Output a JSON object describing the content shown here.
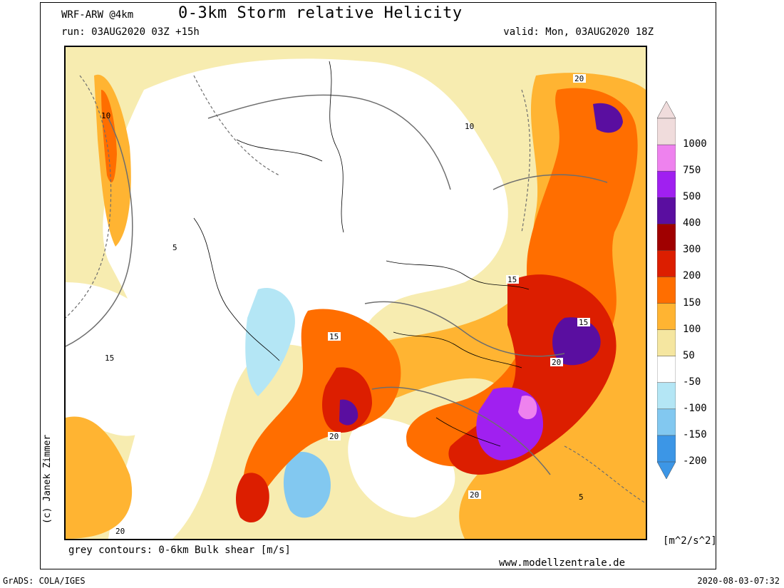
{
  "header": {
    "model": "WRF-ARW @4km",
    "title": "0-3km Storm relative Helicity",
    "run": "run: 03AUG2020 03Z +15h",
    "valid": "valid: Mon, 03AUG2020 18Z"
  },
  "side_credit": "(c) Janek Zimmer",
  "footer": {
    "contours_note": "grey contours: 0-6km Bulk shear [m/s]",
    "website": "www.modellzentrale.de",
    "software": "GrADS: COLA/IGES",
    "timestamp": "2020-08-03-07:32"
  },
  "legend": {
    "units": "[m^2/s^2]",
    "levels": [
      "1000",
      "750",
      "500",
      "400",
      "300",
      "200",
      "150",
      "100",
      "50",
      "-50",
      "-100",
      "-150",
      "-200"
    ],
    "colors": [
      "#f0dcdc",
      "#ee82ee",
      "#a020f0",
      "#5a0ea0",
      "#a00000",
      "#dc1e00",
      "#ff6e00",
      "#ffb432",
      "#f5e6a0",
      "#ffffff",
      "#b4e6f5",
      "#82c8f0",
      "#3c96e6"
    ]
  },
  "map": {
    "contour_labels": [
      "20",
      "15",
      "10",
      "5"
    ]
  }
}
